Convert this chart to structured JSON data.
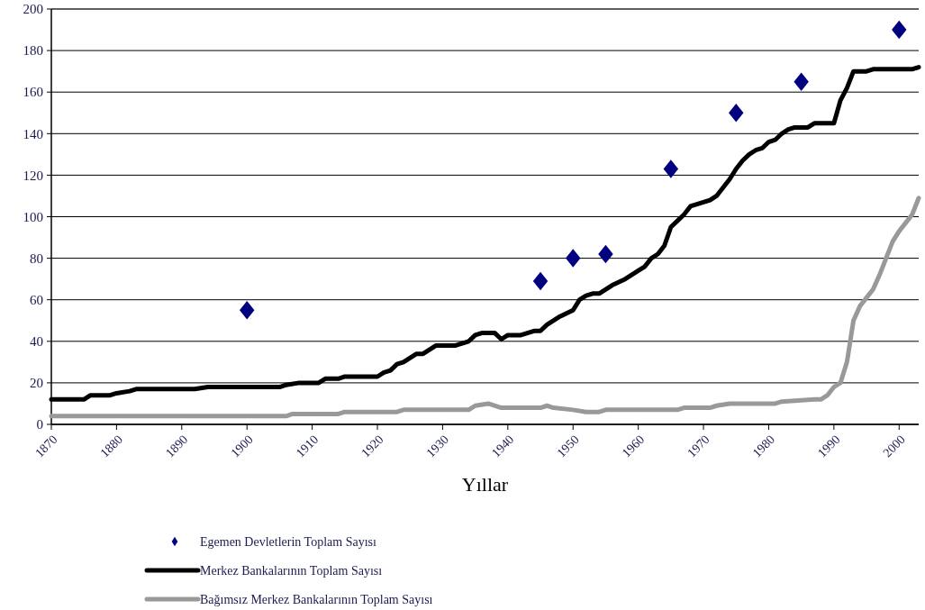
{
  "chart_data": {
    "type": "line",
    "xlabel": "Yıllar",
    "xlim": [
      1870,
      2003
    ],
    "xticks": [
      1870,
      1880,
      1890,
      1900,
      1910,
      1920,
      1930,
      1940,
      1950,
      1960,
      1970,
      1980,
      1990,
      2000
    ],
    "ylim": [
      0,
      200
    ],
    "yticks": [
      0,
      20,
      40,
      60,
      80,
      100,
      120,
      140,
      160,
      180,
      200
    ],
    "grid": "y",
    "legend": "bottom",
    "series": [
      {
        "name": "Egemen Devletlerin Toplam Sayısı",
        "type": "scatter",
        "marker": "diamond",
        "color": "#000080",
        "x": [
          1900,
          1945,
          1950,
          1955,
          1965,
          1975,
          1985,
          2000
        ],
        "values": [
          55,
          69,
          80,
          82,
          123,
          150,
          165,
          190
        ]
      },
      {
        "name": "Merkez Bankalarının Toplam Sayısı",
        "color": "#000000",
        "x": [
          1870,
          1875,
          1876,
          1879,
          1880,
          1882,
          1883,
          1892,
          1894,
          1905,
          1906,
          1908,
          1911,
          1912,
          1914,
          1915,
          1920,
          1921,
          1922,
          1923,
          1924,
          1926,
          1927,
          1929,
          1932,
          1933,
          1934,
          1935,
          1936,
          1938,
          1939,
          1940,
          1942,
          1944,
          1945,
          1946,
          1948,
          1950,
          1951,
          1952,
          1953,
          1954,
          1956,
          1958,
          1960,
          1961,
          1962,
          1963,
          1964,
          1965,
          1966,
          1967,
          1968,
          1970,
          1971,
          1972,
          1973,
          1974,
          1975,
          1976,
          1977,
          1978,
          1979,
          1980,
          1981,
          1982,
          1983,
          1984,
          1986,
          1987,
          1990,
          1991,
          1992,
          1993,
          1995,
          1996,
          2002,
          2003
        ],
        "values": [
          12,
          12,
          14,
          14,
          15,
          16,
          17,
          17,
          18,
          18,
          19,
          20,
          20,
          22,
          22,
          23,
          23,
          25,
          26,
          29,
          30,
          34,
          34,
          38,
          38,
          39,
          40,
          43,
          44,
          44,
          41,
          43,
          43,
          45,
          45,
          48,
          52,
          55,
          60,
          62,
          63,
          63,
          67,
          70,
          74,
          76,
          80,
          82,
          86,
          95,
          98,
          101,
          105,
          107,
          108,
          110,
          114,
          118,
          123,
          127,
          130,
          132,
          133,
          136,
          137,
          140,
          142,
          143,
          143,
          145,
          145,
          156,
          162,
          170,
          170,
          171,
          171,
          172
        ]
      },
      {
        "name": "Bağımsız Merkez Bankalarının Toplam Sayısı",
        "color": "#999999",
        "x": [
          1870,
          1906,
          1907,
          1914,
          1915,
          1923,
          1924,
          1934,
          1935,
          1937,
          1939,
          1945,
          1946,
          1947,
          1950,
          1952,
          1954,
          1955,
          1966,
          1967,
          1971,
          1972,
          1974,
          1981,
          1982,
          1987,
          1988,
          1989,
          1990,
          1991,
          1992,
          1993,
          1994,
          1995,
          1996,
          1997,
          1998,
          1999,
          2000,
          2001,
          2002,
          2003
        ],
        "values": [
          4,
          4,
          5,
          5,
          6,
          6,
          7,
          7,
          9,
          10,
          8,
          8,
          9,
          8,
          7,
          6,
          6,
          7,
          7,
          8,
          8,
          9,
          10,
          10,
          11,
          12,
          12,
          14,
          18,
          20,
          30,
          50,
          57,
          61,
          65,
          72,
          80,
          88,
          93,
          97,
          101,
          109
        ]
      }
    ]
  }
}
